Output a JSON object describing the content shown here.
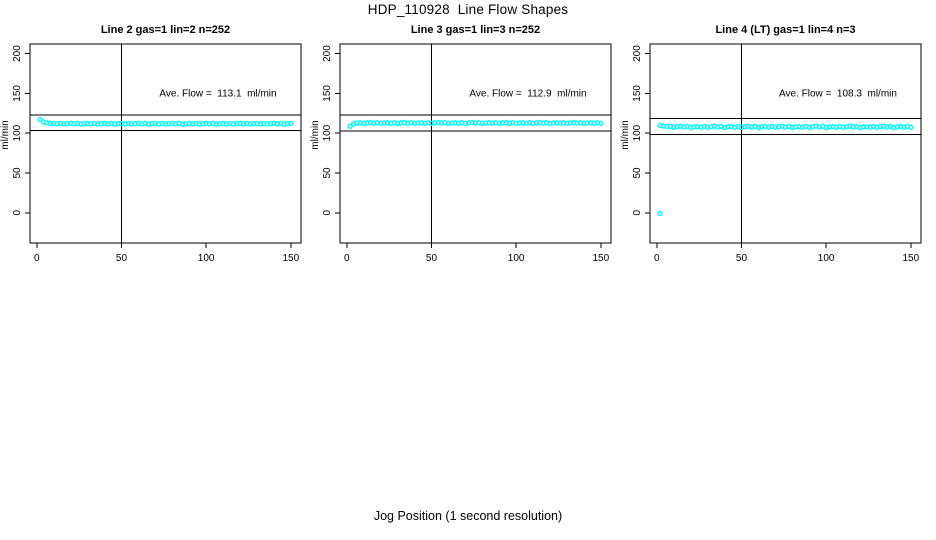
{
  "page": {
    "title": "HDP_110928  Line Flow Shapes",
    "xlabel": "Jog Position (1 second resolution)",
    "background_color": "#ffffff",
    "axis_color": "#000000"
  },
  "chart_data": [
    {
      "type": "scatter",
      "title": "Line 2 gas=1 lin=2 n=252",
      "n": 252,
      "ylabel": "ml/min",
      "annotation": "Ave. Flow =  113.1  ml/min",
      "ave_flow_ml_min": 113.1,
      "xlim": [
        -4,
        156
      ],
      "ylim": [
        -38,
        212
      ],
      "xticks": [
        0,
        50,
        100,
        150
      ],
      "yticks": [
        0,
        50,
        100,
        150,
        200
      ],
      "vline_x": 50,
      "hlines": [
        123.1,
        103.1
      ],
      "annotation_pos": [
        107,
        150
      ],
      "point_color": "#00ffff",
      "points": [
        [
          2,
          117.1
        ],
        [
          4,
          114.2
        ],
        [
          6,
          112.9
        ],
        [
          8,
          112.4
        ],
        [
          10,
          112.1
        ],
        [
          12,
          111.7
        ],
        [
          14,
          112.2
        ],
        [
          16,
          111.5
        ],
        [
          18,
          112.0
        ],
        [
          20,
          112.4
        ],
        [
          22,
          111.7
        ],
        [
          24,
          112.3
        ],
        [
          26,
          111.4
        ],
        [
          28,
          111.9
        ],
        [
          30,
          112.1
        ],
        [
          32,
          111.6
        ],
        [
          34,
          112.2
        ],
        [
          36,
          111.5
        ],
        [
          38,
          112.0
        ],
        [
          40,
          112.4
        ],
        [
          42,
          111.7
        ],
        [
          44,
          112.3
        ],
        [
          46,
          111.4
        ],
        [
          48,
          111.9
        ],
        [
          50,
          112.1
        ],
        [
          52,
          111.6
        ],
        [
          54,
          112.2
        ],
        [
          56,
          111.5
        ],
        [
          58,
          112.0
        ],
        [
          60,
          112.4
        ],
        [
          62,
          111.7
        ],
        [
          64,
          112.3
        ],
        [
          66,
          111.4
        ],
        [
          68,
          111.9
        ],
        [
          70,
          112.1
        ],
        [
          72,
          111.6
        ],
        [
          74,
          112.2
        ],
        [
          76,
          111.5
        ],
        [
          78,
          112.0
        ],
        [
          80,
          112.4
        ],
        [
          82,
          111.7
        ],
        [
          84,
          112.3
        ],
        [
          86,
          111.4
        ],
        [
          88,
          111.9
        ],
        [
          90,
          112.1
        ],
        [
          92,
          111.6
        ],
        [
          94,
          112.2
        ],
        [
          96,
          111.5
        ],
        [
          98,
          112.0
        ],
        [
          100,
          112.4
        ],
        [
          102,
          111.7
        ],
        [
          104,
          112.3
        ],
        [
          106,
          111.4
        ],
        [
          108,
          111.9
        ],
        [
          110,
          112.1
        ],
        [
          112,
          111.6
        ],
        [
          114,
          112.2
        ],
        [
          116,
          111.5
        ],
        [
          118,
          112.0
        ],
        [
          120,
          112.4
        ],
        [
          122,
          111.7
        ],
        [
          124,
          112.3
        ],
        [
          126,
          111.4
        ],
        [
          128,
          111.9
        ],
        [
          130,
          112.1
        ],
        [
          132,
          111.6
        ],
        [
          134,
          112.2
        ],
        [
          136,
          111.5
        ],
        [
          138,
          112.0
        ],
        [
          140,
          112.4
        ],
        [
          142,
          111.7
        ],
        [
          144,
          112.3
        ],
        [
          146,
          111.4
        ],
        [
          148,
          111.9
        ],
        [
          150,
          112.1
        ]
      ]
    },
    {
      "type": "scatter",
      "title": "Line 3 gas=1 lin=3 n=252",
      "n": 252,
      "ylabel": "ml/min",
      "annotation": "Ave. Flow =  112.9  ml/min",
      "ave_flow_ml_min": 112.9,
      "xlim": [
        -4,
        156
      ],
      "ylim": [
        -38,
        212
      ],
      "xticks": [
        0,
        50,
        100,
        150
      ],
      "yticks": [
        0,
        50,
        100,
        150,
        200
      ],
      "vline_x": 50,
      "hlines": [
        122.9,
        102.9
      ],
      "annotation_pos": [
        107,
        150
      ],
      "point_color": "#00ffff",
      "points": [
        [
          2,
          108.6
        ],
        [
          4,
          111.8
        ],
        [
          6,
          112.5
        ],
        [
          8,
          113.1
        ],
        [
          10,
          112.4
        ],
        [
          12,
          112.9
        ],
        [
          14,
          113.3
        ],
        [
          16,
          112.6
        ],
        [
          18,
          113.2
        ],
        [
          20,
          112.3
        ],
        [
          22,
          112.8
        ],
        [
          24,
          113.0
        ],
        [
          26,
          112.5
        ],
        [
          28,
          113.1
        ],
        [
          30,
          112.4
        ],
        [
          32,
          112.9
        ],
        [
          34,
          113.3
        ],
        [
          36,
          112.6
        ],
        [
          38,
          113.2
        ],
        [
          40,
          112.3
        ],
        [
          42,
          112.8
        ],
        [
          44,
          113.0
        ],
        [
          46,
          112.5
        ],
        [
          48,
          113.1
        ],
        [
          50,
          112.4
        ],
        [
          52,
          112.9
        ],
        [
          54,
          113.3
        ],
        [
          56,
          112.6
        ],
        [
          58,
          113.2
        ],
        [
          60,
          112.3
        ],
        [
          62,
          112.8
        ],
        [
          64,
          113.0
        ],
        [
          66,
          112.5
        ],
        [
          68,
          113.1
        ],
        [
          70,
          112.4
        ],
        [
          72,
          112.9
        ],
        [
          74,
          113.3
        ],
        [
          76,
          112.6
        ],
        [
          78,
          113.2
        ],
        [
          80,
          112.3
        ],
        [
          82,
          112.8
        ],
        [
          84,
          113.0
        ],
        [
          86,
          112.5
        ],
        [
          88,
          113.1
        ],
        [
          90,
          112.4
        ],
        [
          92,
          112.9
        ],
        [
          94,
          113.3
        ],
        [
          96,
          112.6
        ],
        [
          98,
          113.2
        ],
        [
          100,
          112.3
        ],
        [
          102,
          112.8
        ],
        [
          104,
          113.0
        ],
        [
          106,
          112.5
        ],
        [
          108,
          113.1
        ],
        [
          110,
          112.4
        ],
        [
          112,
          112.9
        ],
        [
          114,
          113.3
        ],
        [
          116,
          112.6
        ],
        [
          118,
          113.2
        ],
        [
          120,
          112.3
        ],
        [
          122,
          112.8
        ],
        [
          124,
          113.0
        ],
        [
          126,
          112.5
        ],
        [
          128,
          113.1
        ],
        [
          130,
          112.4
        ],
        [
          132,
          112.9
        ],
        [
          134,
          113.3
        ],
        [
          136,
          112.6
        ],
        [
          138,
          113.2
        ],
        [
          140,
          112.3
        ],
        [
          142,
          112.8
        ],
        [
          144,
          113.0
        ],
        [
          146,
          112.5
        ],
        [
          148,
          113.1
        ],
        [
          150,
          112.4
        ]
      ]
    },
    {
      "type": "scatter",
      "title": "Line 4 (LT) gas=1 lin=4 n=3",
      "n": 3,
      "ylabel": "ml/min",
      "annotation": "Ave. Flow =  108.3  ml/min",
      "ave_flow_ml_min": 108.3,
      "xlim": [
        -4,
        156
      ],
      "ylim": [
        -38,
        212
      ],
      "xticks": [
        0,
        50,
        100,
        150
      ],
      "yticks": [
        0,
        50,
        100,
        150,
        200
      ],
      "vline_x": 50,
      "hlines": [
        118.3,
        98.3
      ],
      "annotation_pos": [
        107,
        150
      ],
      "point_color": "#00ffff",
      "points": [
        [
          2,
          -0.8
        ],
        [
          2,
          109.6
        ],
        [
          4,
          109.0
        ],
        [
          6,
          108.4
        ],
        [
          8,
          108.4
        ],
        [
          10,
          107.3
        ],
        [
          12,
          108.1
        ],
        [
          14,
          108.7
        ],
        [
          16,
          107.6
        ],
        [
          18,
          108.5
        ],
        [
          20,
          107.1
        ],
        [
          22,
          107.9
        ],
        [
          24,
          108.2
        ],
        [
          26,
          107.4
        ],
        [
          28,
          108.4
        ],
        [
          30,
          107.3
        ],
        [
          32,
          108.1
        ],
        [
          34,
          108.7
        ],
        [
          36,
          107.6
        ],
        [
          38,
          108.5
        ],
        [
          40,
          107.1
        ],
        [
          42,
          107.9
        ],
        [
          44,
          108.2
        ],
        [
          46,
          107.4
        ],
        [
          48,
          108.4
        ],
        [
          50,
          107.3
        ],
        [
          52,
          108.1
        ],
        [
          54,
          108.7
        ],
        [
          56,
          107.6
        ],
        [
          58,
          108.5
        ],
        [
          60,
          107.1
        ],
        [
          62,
          107.9
        ],
        [
          64,
          108.2
        ],
        [
          66,
          107.4
        ],
        [
          68,
          108.4
        ],
        [
          70,
          107.3
        ],
        [
          72,
          108.1
        ],
        [
          74,
          108.7
        ],
        [
          76,
          107.6
        ],
        [
          78,
          108.5
        ],
        [
          80,
          107.1
        ],
        [
          82,
          107.9
        ],
        [
          84,
          108.2
        ],
        [
          86,
          107.4
        ],
        [
          88,
          108.4
        ],
        [
          90,
          107.3
        ],
        [
          92,
          108.1
        ],
        [
          94,
          108.7
        ],
        [
          96,
          107.6
        ],
        [
          98,
          108.5
        ],
        [
          100,
          107.1
        ],
        [
          102,
          107.9
        ],
        [
          104,
          108.2
        ],
        [
          106,
          107.4
        ],
        [
          108,
          108.4
        ],
        [
          110,
          107.3
        ],
        [
          112,
          108.1
        ],
        [
          114,
          108.7
        ],
        [
          116,
          107.6
        ],
        [
          118,
          108.5
        ],
        [
          120,
          107.1
        ],
        [
          122,
          107.9
        ],
        [
          124,
          108.2
        ],
        [
          126,
          107.4
        ],
        [
          128,
          108.4
        ],
        [
          130,
          107.3
        ],
        [
          132,
          108.1
        ],
        [
          134,
          108.7
        ],
        [
          136,
          107.6
        ],
        [
          138,
          108.5
        ],
        [
          140,
          107.1
        ],
        [
          142,
          107.9
        ],
        [
          144,
          108.2
        ],
        [
          146,
          107.4
        ],
        [
          148,
          108.4
        ],
        [
          150,
          107.3
        ]
      ]
    }
  ]
}
